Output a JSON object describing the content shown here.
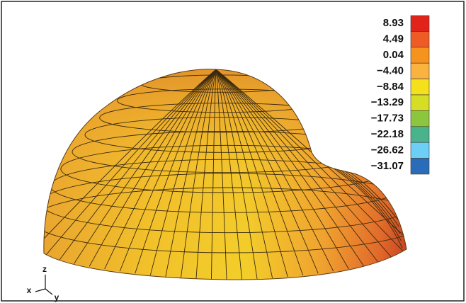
{
  "legend": {
    "labels": [
      "8.93",
      "4.49",
      "0.04",
      "−4.40",
      "−8.84",
      "−13.29",
      "−17.73",
      "−22.18",
      "−26.62",
      "−31.07"
    ],
    "colors": [
      "#e2231a",
      "#ef5b25",
      "#f6921e",
      "#fbb33f",
      "#f4e11c",
      "#d5de24",
      "#8cc63e",
      "#4bb38b",
      "#6dcff6",
      "#2b6cb8"
    ]
  },
  "axes": {
    "z": "z",
    "x": "x",
    "y": "y"
  }
}
